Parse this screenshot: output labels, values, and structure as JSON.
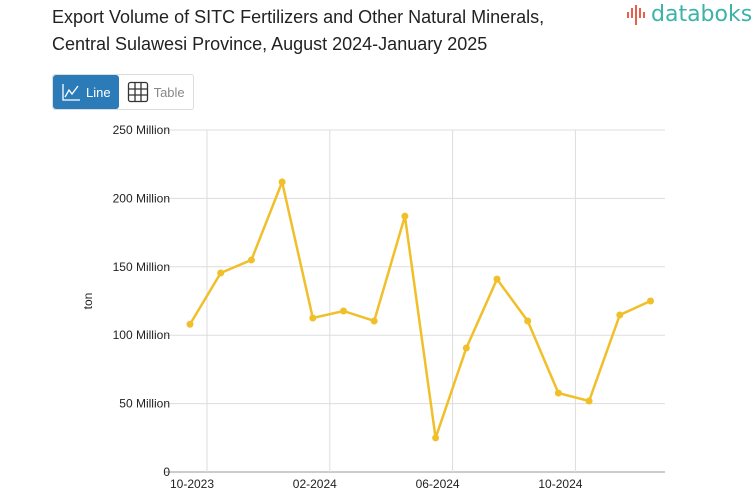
{
  "title_line1": "Export Volume of SITC Fertilizers and Other Natural Minerals,",
  "title_line2": "Central Sulawesi Province, August 2024-January 2025",
  "logo": {
    "text": "databoks",
    "color": "#3bb3a8",
    "accent": "#e8604c"
  },
  "toggle": {
    "line_label": "Line",
    "table_label": "Table",
    "active": "line",
    "active_color": "#2b7bb9"
  },
  "chart_data": {
    "type": "line",
    "title": "Export Volume of SITC Fertilizers and Other Natural Minerals, Central Sulawesi Province, August 2024-January 2025",
    "ylabel": "ton",
    "xlabel": "",
    "x": [
      "10-2023",
      "11-2023",
      "12-2023",
      "01-2024",
      "02-2024",
      "03-2024",
      "04-2024",
      "05-2024",
      "06-2024",
      "07-2024",
      "08-2024",
      "09-2024",
      "10-2024",
      "11-2024",
      "12-2024",
      "01-2025"
    ],
    "values": [
      108000000,
      145500000,
      155000000,
      212000000,
      112600000,
      117700000,
      110400000,
      187000000,
      24900000,
      90600000,
      141000000,
      110400000,
      57700000,
      51900000,
      114800000,
      125000000
    ],
    "ylim": [
      0,
      250000000
    ],
    "yticks": [
      0,
      50000000,
      100000000,
      150000000,
      200000000,
      250000000
    ],
    "ytick_labels": [
      "0",
      "50 Million",
      "100 Million",
      "150 Million",
      "200 Million",
      "250 Million"
    ],
    "xtick_labels": [
      "10-2023",
      "02-2024",
      "06-2024",
      "10-2024"
    ],
    "line_color": "#f0bf2a",
    "grid": true
  }
}
